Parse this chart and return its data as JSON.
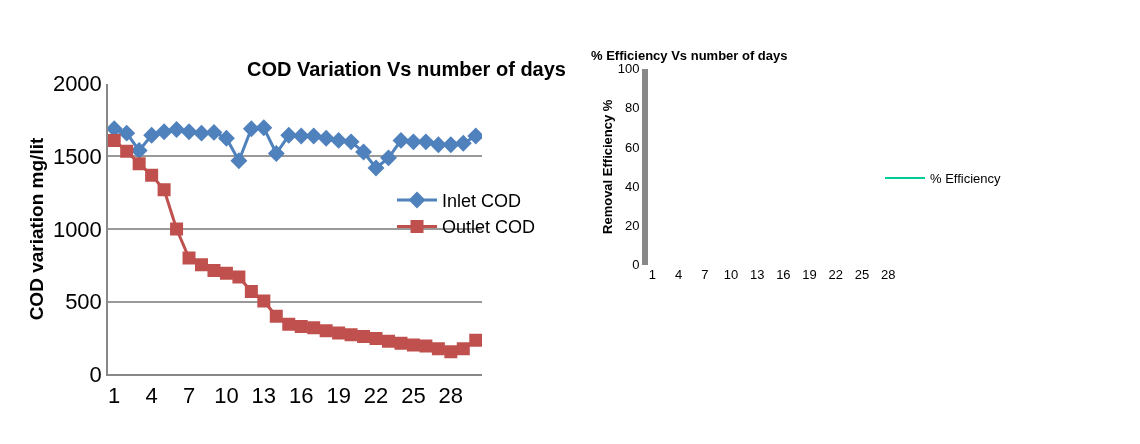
{
  "chart_data": [
    {
      "type": "line",
      "title": "COD Variation Vs number of days",
      "ylabel": "COD variation mg/lit",
      "categories": [
        "1",
        null,
        null,
        "4",
        null,
        null,
        "7",
        null,
        null,
        "10",
        null,
        null,
        "13",
        null,
        null,
        "16",
        null,
        null,
        "19",
        null,
        null,
        "22",
        null,
        null,
        "25",
        null,
        null,
        "28",
        null,
        null
      ],
      "series": [
        {
          "name": "Inlet COD",
          "color": "#4f81bd",
          "marker": "diamond",
          "values": [
            1690,
            1660,
            1540,
            1645,
            1670,
            1685,
            1670,
            1660,
            1665,
            1625,
            1470,
            1690,
            1697,
            1520,
            1645,
            1640,
            1640,
            1625,
            1610,
            1600,
            1530,
            1420,
            1490,
            1610,
            1600,
            1600,
            1580,
            1580,
            1590,
            1640
          ]
        },
        {
          "name": "Outlet COD",
          "color": "#c0504d",
          "marker": "square",
          "values": [
            1610,
            1535,
            1450,
            1370,
            1270,
            1000,
            800,
            755,
            715,
            695,
            670,
            570,
            505,
            400,
            345,
            330,
            320,
            300,
            285,
            273,
            260,
            247,
            228,
            215,
            202,
            195,
            176,
            156,
            176,
            235
          ]
        }
      ],
      "ylim": [
        0,
        2000
      ],
      "yticks": [
        0,
        500,
        1000,
        1500,
        2000
      ],
      "grid": "y",
      "legend": "right"
    },
    {
      "type": "line",
      "title": "% Efficiency Vs number of days",
      "ylabel": "Removal Efficiency %",
      "categories": [
        "1",
        null,
        null,
        "4",
        null,
        null,
        "7",
        null,
        null,
        "10",
        null,
        null,
        "13",
        null,
        null,
        "16",
        null,
        null,
        "19",
        null,
        null,
        "22",
        null,
        null,
        "25",
        null,
        null,
        "28",
        null,
        null
      ],
      "series": [
        {
          "name": "% Efficiency",
          "values": [
            null,
            null,
            null,
            null,
            null,
            null,
            null,
            null,
            null,
            null,
            null,
            null,
            null,
            null,
            null,
            null,
            null,
            null,
            null,
            null,
            null,
            null,
            null,
            null,
            null,
            null,
            null,
            null,
            null,
            null
          ]
        }
      ],
      "ylim": [
        0,
        100
      ],
      "yticks": [
        0,
        20,
        40,
        60,
        80,
        100
      ],
      "grid": false,
      "legend": "right"
    }
  ]
}
